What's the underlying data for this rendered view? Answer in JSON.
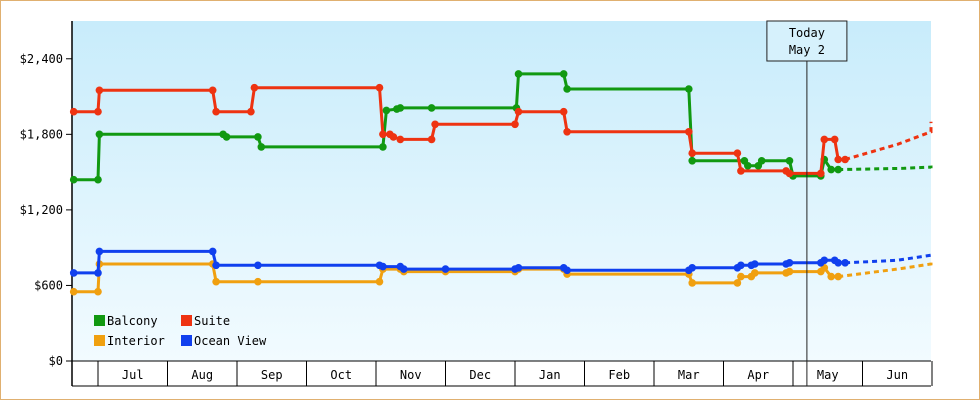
{
  "chart_data": {
    "type": "line",
    "title": "",
    "xlabel": "",
    "ylabel": "",
    "ylim": [
      0,
      2700
    ],
    "y_ticks": [
      "$0",
      "$600",
      "$1,200",
      "$1,800",
      "$2,400"
    ],
    "y_tick_values": [
      0,
      600,
      1200,
      1800,
      2400
    ],
    "months": [
      "Jul",
      "Aug",
      "Sep",
      "Oct",
      "Nov",
      "Dec",
      "Jan",
      "Feb",
      "Mar",
      "Apr",
      "May",
      "Jun"
    ],
    "today": {
      "line1": "Today",
      "line2": "May 2",
      "x": 10.2
    },
    "grid": false,
    "legend_position": "bottom-left",
    "series": [
      {
        "name": "Balcony",
        "color": "#119911",
        "points": [
          [
            -0.35,
            1440
          ],
          [
            0.0,
            1440
          ],
          [
            0.02,
            1800
          ],
          [
            1.8,
            1800
          ],
          [
            1.85,
            1780
          ],
          [
            2.3,
            1780
          ],
          [
            2.35,
            1700
          ],
          [
            4.1,
            1700
          ],
          [
            4.15,
            1990
          ],
          [
            4.3,
            2000
          ],
          [
            4.35,
            2010
          ],
          [
            4.8,
            2010
          ],
          [
            6.02,
            2010
          ],
          [
            6.05,
            2280
          ],
          [
            6.7,
            2280
          ],
          [
            6.75,
            2160
          ],
          [
            8.5,
            2160
          ],
          [
            8.55,
            1590
          ],
          [
            9.3,
            1590
          ],
          [
            9.35,
            1550
          ],
          [
            9.5,
            1550
          ],
          [
            9.55,
            1590
          ],
          [
            9.95,
            1590
          ],
          [
            10.0,
            1470
          ],
          [
            10.4,
            1470
          ],
          [
            10.45,
            1600
          ],
          [
            10.55,
            1520
          ],
          [
            10.65,
            1520
          ]
        ],
        "projection": [
          [
            10.65,
            1520
          ],
          [
            11.6,
            1530
          ],
          [
            12.5,
            1540
          ],
          [
            13.0,
            1530
          ]
        ]
      },
      {
        "name": "Suite",
        "color": "#ee3311",
        "points": [
          [
            -0.35,
            1980
          ],
          [
            0.0,
            1980
          ],
          [
            0.02,
            2150
          ],
          [
            1.65,
            2150
          ],
          [
            1.7,
            1980
          ],
          [
            2.2,
            1980
          ],
          [
            2.25,
            2170
          ],
          [
            4.05,
            2170
          ],
          [
            4.1,
            1800
          ],
          [
            4.2,
            1800
          ],
          [
            4.25,
            1780
          ],
          [
            4.35,
            1760
          ],
          [
            4.8,
            1760
          ],
          [
            4.85,
            1880
          ],
          [
            6.0,
            1880
          ],
          [
            6.05,
            1980
          ],
          [
            6.7,
            1980
          ],
          [
            6.75,
            1820
          ],
          [
            8.5,
            1820
          ],
          [
            8.55,
            1650
          ],
          [
            9.2,
            1650
          ],
          [
            9.25,
            1510
          ],
          [
            9.9,
            1510
          ],
          [
            9.95,
            1490
          ],
          [
            10.4,
            1490
          ],
          [
            10.45,
            1760
          ],
          [
            10.6,
            1760
          ],
          [
            10.65,
            1600
          ],
          [
            10.75,
            1600
          ]
        ],
        "projection": [
          [
            10.75,
            1600
          ],
          [
            11.5,
            1720
          ],
          [
            12.3,
            1820
          ],
          [
            13.0,
            1900
          ]
        ]
      },
      {
        "name": "Interior",
        "color": "#f0a010",
        "points": [
          [
            -0.35,
            550
          ],
          [
            0.0,
            550
          ],
          [
            0.02,
            770
          ],
          [
            1.65,
            770
          ],
          [
            1.7,
            630
          ],
          [
            2.3,
            630
          ],
          [
            4.05,
            630
          ],
          [
            4.1,
            730
          ],
          [
            4.35,
            730
          ],
          [
            4.4,
            710
          ],
          [
            5.0,
            710
          ],
          [
            6.0,
            710
          ],
          [
            6.05,
            730
          ],
          [
            6.7,
            730
          ],
          [
            6.75,
            690
          ],
          [
            8.5,
            690
          ],
          [
            8.55,
            620
          ],
          [
            9.2,
            620
          ],
          [
            9.25,
            670
          ],
          [
            9.4,
            670
          ],
          [
            9.45,
            700
          ],
          [
            9.9,
            700
          ],
          [
            9.95,
            710
          ],
          [
            10.4,
            710
          ],
          [
            10.45,
            740
          ],
          [
            10.55,
            670
          ],
          [
            10.65,
            670
          ]
        ],
        "projection": [
          [
            10.65,
            670
          ],
          [
            11.5,
            730
          ],
          [
            12.3,
            770
          ],
          [
            13.0,
            790
          ]
        ]
      },
      {
        "name": "Ocean View",
        "color": "#1040ee",
        "points": [
          [
            -0.35,
            700
          ],
          [
            0.0,
            700
          ],
          [
            0.02,
            870
          ],
          [
            1.65,
            870
          ],
          [
            1.7,
            760
          ],
          [
            2.3,
            760
          ],
          [
            4.05,
            760
          ],
          [
            4.1,
            750
          ],
          [
            4.35,
            750
          ],
          [
            4.4,
            730
          ],
          [
            5.0,
            730
          ],
          [
            6.0,
            730
          ],
          [
            6.05,
            740
          ],
          [
            6.7,
            740
          ],
          [
            6.75,
            720
          ],
          [
            8.5,
            720
          ],
          [
            8.55,
            740
          ],
          [
            9.2,
            740
          ],
          [
            9.25,
            760
          ],
          [
            9.4,
            760
          ],
          [
            9.45,
            770
          ],
          [
            9.9,
            770
          ],
          [
            9.95,
            780
          ],
          [
            10.4,
            780
          ],
          [
            10.45,
            800
          ],
          [
            10.6,
            800
          ],
          [
            10.65,
            780
          ],
          [
            10.75,
            780
          ]
        ],
        "projection": [
          [
            10.75,
            780
          ],
          [
            11.5,
            800
          ],
          [
            12.3,
            840
          ],
          [
            13.0,
            860
          ]
        ]
      }
    ]
  }
}
